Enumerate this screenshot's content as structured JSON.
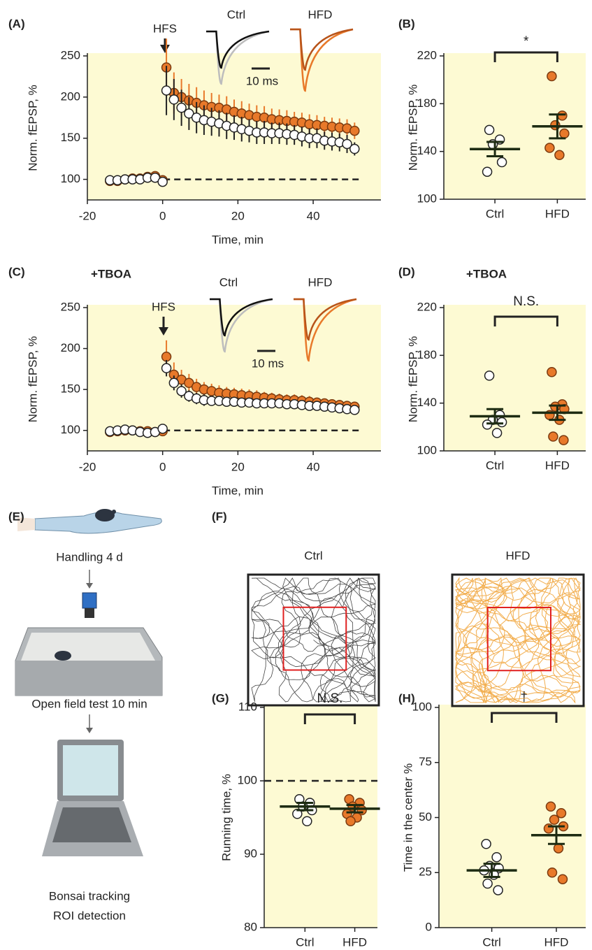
{
  "chart_data": [
    {
      "type": "errorbar",
      "panel_label": "(A)",
      "annotation": "HFS",
      "scale_bar": "10 ms",
      "xlabel": "Time, min",
      "ylabel": "Norm. fEPSP, %",
      "background": "#fdfad3",
      "xlim": [
        -20,
        58
      ],
      "xticks": [
        -20,
        0,
        20,
        40
      ],
      "ylim": [
        75,
        250
      ],
      "yticks": [
        100,
        150,
        200,
        250
      ],
      "reference": 100,
      "x": [
        -14,
        -12,
        -10,
        -8,
        -6,
        -4,
        -2,
        0,
        1,
        3,
        5,
        7,
        9,
        11,
        13,
        15,
        17,
        19,
        21,
        23,
        25,
        27,
        29,
        31,
        33,
        35,
        37,
        39,
        41,
        43,
        45,
        47,
        49,
        51
      ],
      "series": [
        {
          "name": "Ctrl",
          "color": "#ffffff",
          "label_color": "#222222",
          "values": [
            99,
            99,
            100,
            100,
            100,
            102,
            102,
            97,
            208,
            197,
            187,
            180,
            175,
            172,
            170,
            168,
            165,
            163,
            161,
            159,
            157,
            157,
            156,
            156,
            155,
            154,
            152,
            150,
            150,
            147,
            146,
            145,
            143,
            137
          ],
          "errors": [
            3,
            3,
            3,
            3,
            3,
            3,
            3,
            3,
            30,
            25,
            22,
            20,
            19,
            18,
            17,
            16,
            16,
            15,
            15,
            14,
            14,
            14,
            13,
            13,
            13,
            12,
            12,
            12,
            12,
            11,
            11,
            11,
            11,
            8
          ]
        },
        {
          "name": "HFD",
          "color": "#e8792a",
          "label_color": "#e8792a",
          "values": [
            98,
            98,
            100,
            101,
            101,
            103,
            104,
            99,
            236,
            205,
            200,
            196,
            193,
            190,
            188,
            187,
            185,
            182,
            180,
            178,
            176,
            175,
            173,
            172,
            171,
            170,
            169,
            167,
            166,
            165,
            164,
            163,
            162,
            159
          ],
          "errors": [
            3,
            3,
            3,
            3,
            3,
            3,
            3,
            3,
            35,
            25,
            22,
            20,
            19,
            18,
            17,
            16,
            16,
            15,
            15,
            14,
            14,
            14,
            13,
            13,
            13,
            12,
            12,
            12,
            12,
            11,
            11,
            11,
            11,
            10
          ]
        }
      ]
    },
    {
      "type": "strip",
      "panel_label": "(B)",
      "ylabel": "Norm. fEPSP, %",
      "background": "#fdfad3",
      "significance": "*",
      "categories": [
        "Ctrl",
        "HFD"
      ],
      "ylim": [
        100,
        220
      ],
      "yticks": [
        100,
        140,
        180,
        220
      ],
      "series": [
        {
          "name": "Ctrl",
          "color": "#ffffff",
          "label_color": "#222222",
          "values": [
            158,
            150,
            146,
            131,
            123
          ],
          "mean": 142,
          "sem": 6
        },
        {
          "name": "HFD",
          "color": "#e8792a",
          "label_color": "#e8792a",
          "values": [
            203,
            170,
            162,
            155,
            143,
            137
          ],
          "mean": 161,
          "sem": 10
        }
      ]
    },
    {
      "type": "errorbar",
      "panel_label": "(C)",
      "subtitle": "+TBOA",
      "annotation": "HFS",
      "scale_bar": "10 ms",
      "xlabel": "Time, min",
      "ylabel": "Norm. fEPSP, %",
      "background": "#fdfad3",
      "xlim": [
        -20,
        58
      ],
      "xticks": [
        -20,
        0,
        20,
        40
      ],
      "ylim": [
        75,
        250
      ],
      "yticks": [
        100,
        150,
        200,
        250
      ],
      "reference": 100,
      "x": [
        -14,
        -12,
        -10,
        -8,
        -6,
        -4,
        -2,
        0,
        1,
        3,
        5,
        7,
        9,
        11,
        13,
        15,
        17,
        19,
        21,
        23,
        25,
        27,
        29,
        31,
        33,
        35,
        37,
        39,
        41,
        43,
        45,
        47,
        49,
        51
      ],
      "series": [
        {
          "name": "Ctrl",
          "color": "#ffffff",
          "label_color": "#222222",
          "values": [
            99,
            100,
            101,
            100,
            98,
            97,
            98,
            102,
            176,
            158,
            148,
            142,
            139,
            137,
            136,
            136,
            135,
            135,
            134,
            134,
            133,
            133,
            133,
            133,
            132,
            132,
            131,
            130,
            130,
            129,
            128,
            127,
            126,
            125
          ],
          "errors": [
            4,
            4,
            4,
            4,
            4,
            4,
            4,
            4,
            10,
            9,
            8,
            7,
            7,
            7,
            6,
            6,
            6,
            6,
            6,
            6,
            6,
            5,
            5,
            5,
            5,
            5,
            5,
            5,
            5,
            5,
            5,
            5,
            5,
            5
          ]
        },
        {
          "name": "HFD",
          "color": "#e8792a",
          "label_color": "#e8792a",
          "values": [
            98,
            99,
            100,
            100,
            99,
            99,
            98,
            99,
            190,
            168,
            162,
            158,
            153,
            150,
            148,
            146,
            145,
            144,
            143,
            142,
            141,
            140,
            139,
            138,
            137,
            137,
            136,
            135,
            134,
            133,
            132,
            131,
            130,
            129
          ],
          "errors": [
            3,
            3,
            3,
            3,
            3,
            3,
            3,
            3,
            20,
            15,
            12,
            11,
            10,
            9,
            9,
            9,
            8,
            8,
            8,
            8,
            8,
            7,
            7,
            7,
            7,
            7,
            7,
            7,
            6,
            6,
            6,
            6,
            6,
            6
          ]
        }
      ]
    },
    {
      "type": "strip",
      "panel_label": "(D)",
      "subtitle": "+TBOA",
      "ylabel": "Norm. fEPSP, %",
      "background": "#fdfad3",
      "significance": "N.S.",
      "categories": [
        "Ctrl",
        "HFD"
      ],
      "ylim": [
        100,
        220
      ],
      "yticks": [
        100,
        140,
        180,
        220
      ],
      "series": [
        {
          "name": "Ctrl",
          "color": "#ffffff",
          "label_color": "#222222",
          "values": [
            163,
            130,
            126,
            124,
            122,
            115
          ],
          "mean": 129,
          "sem": 6
        },
        {
          "name": "HFD",
          "color": "#e8792a",
          "label_color": "#e8792a",
          "values": [
            166,
            139,
            137,
            135,
            130,
            126,
            112,
            109
          ],
          "mean": 132,
          "sem": 6
        }
      ]
    },
    {
      "type": "strip",
      "panel_label": "(G)",
      "ylabel": "Running time, %",
      "background": "#fdfad3",
      "significance": "N.S.",
      "reference": 100,
      "categories": [
        "Ctrl",
        "HFD"
      ],
      "ylim": [
        80,
        110
      ],
      "yticks": [
        80,
        90,
        100,
        110
      ],
      "series": [
        {
          "name": "Ctrl",
          "color": "#ffffff",
          "label_color": "#222222",
          "values": [
            97.5,
            97,
            96.5,
            96,
            95.5,
            94.5
          ],
          "mean": 96.5,
          "sem": 0.5
        },
        {
          "name": "HFD",
          "color": "#e8792a",
          "label_color": "#e8792a",
          "values": [
            97.5,
            97,
            96.5,
            96,
            95.5,
            95,
            94.5
          ],
          "mean": 96.2,
          "sem": 0.5
        }
      ]
    },
    {
      "type": "strip",
      "panel_label": "(H)",
      "ylabel": "Time in the center %",
      "background": "#fdfad3",
      "significance": "†",
      "categories": [
        "Ctrl",
        "HFD"
      ],
      "ylim": [
        0,
        100
      ],
      "yticks": [
        0,
        25,
        50,
        75,
        100
      ],
      "series": [
        {
          "name": "Ctrl",
          "color": "#ffffff",
          "label_color": "#222222",
          "values": [
            38,
            32,
            28,
            27,
            26,
            24,
            20,
            17
          ],
          "mean": 26,
          "sem": 3
        },
        {
          "name": "HFD",
          "color": "#e8792a",
          "label_color": "#e8792a",
          "values": [
            55,
            52,
            49,
            46,
            45,
            36,
            25,
            22
          ],
          "mean": 42,
          "sem": 4
        }
      ]
    }
  ],
  "workflow": {
    "panel_label": "(E)",
    "steps": [
      "Handling 4 d",
      "Open field test 10 min",
      "Bonsai tracking",
      "ROI detection"
    ]
  },
  "tracking": {
    "panel_label": "(F)",
    "titles": [
      "Ctrl",
      "HFD"
    ],
    "colors": [
      "#222222",
      "#f0a030"
    ],
    "title_colors": [
      "#222222",
      "#e8792a"
    ],
    "roi_color": "#e02020"
  }
}
